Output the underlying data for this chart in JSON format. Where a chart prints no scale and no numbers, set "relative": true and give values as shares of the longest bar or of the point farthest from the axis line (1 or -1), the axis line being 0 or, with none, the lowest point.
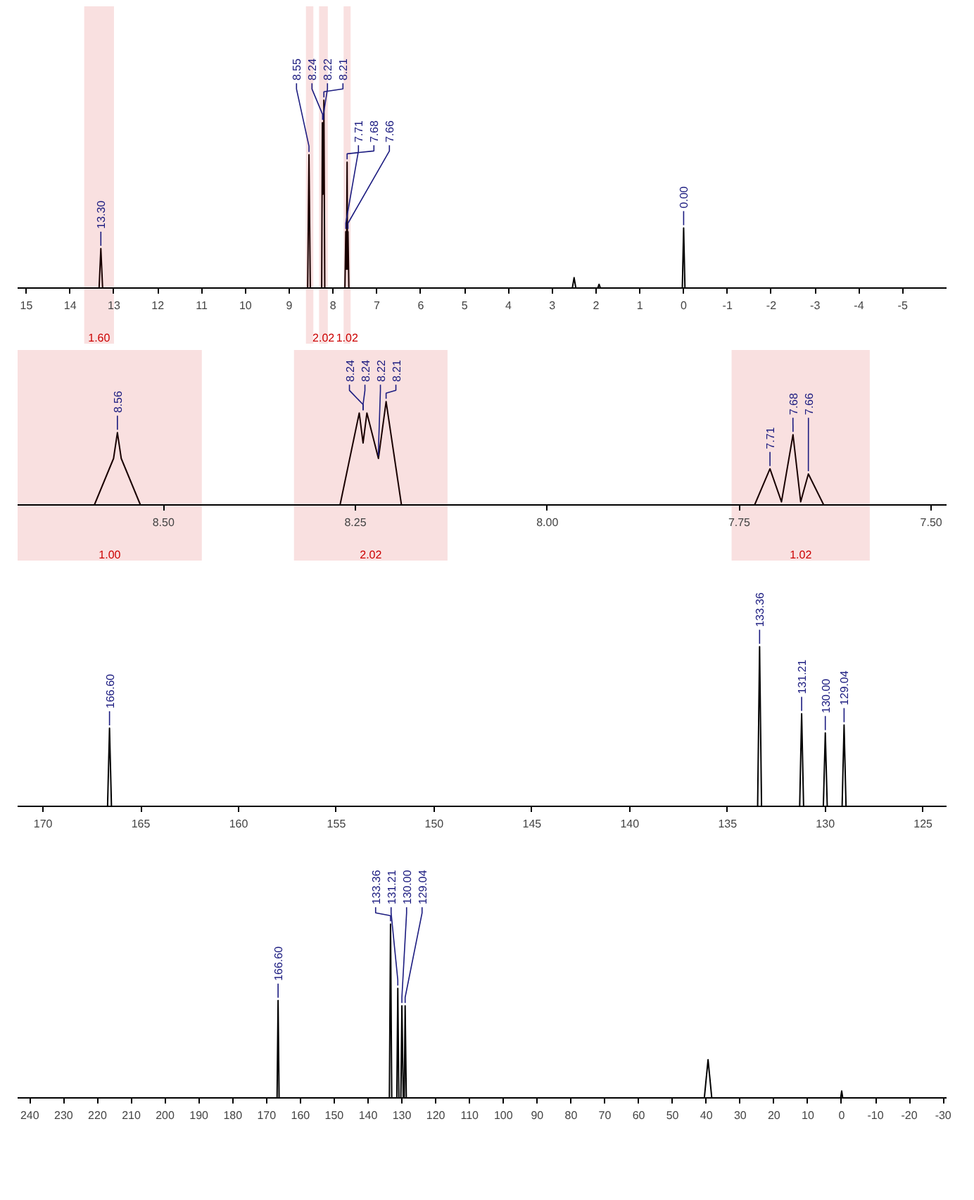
{
  "chart_data": [
    {
      "type": "line",
      "relative": true,
      "xlim": [
        15.2,
        -6.0
      ],
      "xticks": [
        15,
        14,
        13,
        12,
        11,
        10,
        9,
        8,
        7,
        6,
        5,
        4,
        3,
        2,
        1,
        0,
        -1,
        -2,
        -3,
        -4,
        -5
      ],
      "grid": false,
      "series": [
        {
          "color": "#000000",
          "x": [
            15.2,
            13.34,
            13.3,
            13.26,
            8.58,
            8.55,
            8.52,
            8.26,
            8.245,
            8.23,
            8.22,
            8.215,
            8.21,
            8.19,
            7.73,
            7.71,
            7.695,
            7.68,
            7.67,
            7.66,
            7.64,
            2.54,
            2.5,
            2.46,
            1.96,
            1.93,
            1.9,
            0.03,
            0.0,
            -0.03,
            -6.0
          ],
          "values": [
            0,
            0,
            0.21,
            0,
            0,
            0.71,
            0,
            0,
            0.88,
            0.5,
            0.88,
            0.6,
            1.0,
            0,
            0,
            0.3,
            0.1,
            0.67,
            0.1,
            0.3,
            0,
            0,
            0.055,
            0,
            0,
            0.02,
            0,
            0,
            0.32,
            0,
            0
          ]
        }
      ],
      "annotations": [
        {
          "text": "13.30",
          "x": 13.3,
          "y": 0.21
        },
        {
          "text": "8.55",
          "x": 8.55,
          "y": 0.71
        },
        {
          "text": "8.24",
          "x": 8.24,
          "y": 0.88
        },
        {
          "text": "8.22",
          "x": 8.22,
          "y": 0.88
        },
        {
          "text": "8.21",
          "x": 8.21,
          "y": 1.0
        },
        {
          "text": "7.71",
          "x": 7.71,
          "y": 0.3
        },
        {
          "text": "7.68",
          "x": 7.68,
          "y": 0.67
        },
        {
          "text": "7.66",
          "x": 7.66,
          "y": 0.3
        },
        {
          "text": "0.00",
          "x": 0.0,
          "y": 0.32
        }
      ],
      "bands": [
        {
          "axis": "x",
          "from": 13.68,
          "to": 13.0,
          "label": "1.60",
          "color": "#cc0000"
        },
        {
          "axis": "x",
          "from": 8.62,
          "to": 8.45,
          "label": null,
          "color": "#cc0000"
        },
        {
          "axis": "x",
          "from": 8.32,
          "to": 8.12,
          "label": "2.02",
          "color": "#cc0000"
        },
        {
          "axis": "x",
          "from": 7.76,
          "to": 7.6,
          "label": "1.02",
          "color": "#cc0000"
        }
      ]
    },
    {
      "type": "line",
      "relative": true,
      "xlim": [
        8.69,
        7.48
      ],
      "xticks": [
        {
          "value": 8.5,
          "label": "8.50"
        },
        {
          "value": 8.25,
          "label": "8.25"
        },
        {
          "value": 8.0,
          "label": "8.00"
        },
        {
          "value": 7.75,
          "label": "7.75"
        },
        {
          "value": 7.5,
          "label": "7.50"
        }
      ],
      "grid": false,
      "series": [
        {
          "color": "#000000",
          "x": [
            8.69,
            8.59,
            8.565,
            8.56,
            8.555,
            8.53,
            8.27,
            8.245,
            8.24,
            8.235,
            8.22,
            8.21,
            8.19,
            7.73,
            7.71,
            7.695,
            7.68,
            7.67,
            7.66,
            7.64,
            7.48
          ],
          "values": [
            0,
            0,
            0.45,
            0.7,
            0.45,
            0,
            0,
            0.89,
            0.6,
            0.89,
            0.45,
            1.0,
            0,
            0,
            0.35,
            0.03,
            0.68,
            0.03,
            0.3,
            0,
            0
          ]
        }
      ],
      "annotations": [
        {
          "text": "8.56",
          "x": 8.56,
          "y": 0.7
        },
        {
          "text": "8.24",
          "x": 8.24,
          "y": 0.89
        },
        {
          "text": "8.24",
          "x": 8.24,
          "y": 0.89
        },
        {
          "text": "8.22",
          "x": 8.22,
          "y": 0.45
        },
        {
          "text": "8.21",
          "x": 8.21,
          "y": 1.0
        },
        {
          "text": "7.71",
          "x": 7.71,
          "y": 0.35
        },
        {
          "text": "7.68",
          "x": 7.68,
          "y": 0.68
        },
        {
          "text": "7.66",
          "x": 7.66,
          "y": 0.3
        }
      ],
      "bands": [
        {
          "axis": "x",
          "from": 8.69,
          "to": 8.45,
          "label": "1.00",
          "color": "#cc0000"
        },
        {
          "axis": "x",
          "from": 8.33,
          "to": 8.13,
          "label": "2.02",
          "color": "#cc0000"
        },
        {
          "axis": "x",
          "from": 7.76,
          "to": 7.58,
          "label": "1.02",
          "color": "#cc0000"
        }
      ]
    },
    {
      "type": "line",
      "relative": true,
      "xlim": [
        171.3,
        123.8
      ],
      "xticks": [
        170,
        165,
        160,
        155,
        150,
        145,
        140,
        135,
        130,
        125
      ],
      "grid": false,
      "series": [
        {
          "color": "#000000",
          "x": [
            171.3,
            166.7,
            166.6,
            166.5,
            133.46,
            133.36,
            133.26,
            131.31,
            131.21,
            131.11,
            130.1,
            130.0,
            129.9,
            129.14,
            129.04,
            128.94,
            123.8
          ],
          "values": [
            0,
            0,
            0.49,
            0,
            0,
            1.0,
            0,
            0,
            0.58,
            0,
            0,
            0.46,
            0,
            0,
            0.51,
            0,
            0
          ]
        }
      ],
      "annotations": [
        {
          "text": "166.60",
          "x": 166.6,
          "y": 0.49
        },
        {
          "text": "133.36",
          "x": 133.36,
          "y": 1.0
        },
        {
          "text": "131.21",
          "x": 131.21,
          "y": 0.58
        },
        {
          "text": "130.00",
          "x": 130.0,
          "y": 0.46
        },
        {
          "text": "129.04",
          "x": 129.04,
          "y": 0.51
        }
      ]
    },
    {
      "type": "line",
      "relative": true,
      "xlim": [
        243.6,
        -31.0
      ],
      "xticks": [
        240,
        230,
        220,
        210,
        200,
        190,
        180,
        170,
        160,
        150,
        140,
        130,
        120,
        110,
        100,
        90,
        80,
        70,
        60,
        50,
        40,
        30,
        20,
        10,
        0,
        -10,
        -20,
        -30
      ],
      "grid": false,
      "series": [
        {
          "color": "#000000",
          "x": [
            243.6,
            166.9,
            166.6,
            166.3,
            133.7,
            133.36,
            133.0,
            131.5,
            131.21,
            130.9,
            130.3,
            130.0,
            129.6,
            129.3,
            129.04,
            128.7,
            40.6,
            40.0,
            39.5,
            39.0,
            38.4,
            0.3,
            0.0,
            -0.3,
            -31.0
          ],
          "values": [
            0,
            0,
            0.56,
            0,
            0,
            1.0,
            0,
            0,
            0.63,
            0,
            0,
            0.53,
            0,
            0,
            0.53,
            0,
            0,
            0.12,
            0.22,
            0.12,
            0,
            0,
            0.04,
            0,
            0
          ]
        }
      ],
      "annotations": [
        {
          "text": "166.60",
          "x": 166.6,
          "y": 0.56
        },
        {
          "text": "133.36",
          "x": 133.36,
          "y": 1.0
        },
        {
          "text": "131.21",
          "x": 131.21,
          "y": 0.63
        },
        {
          "text": "130.00",
          "x": 130.0,
          "y": 0.53
        },
        {
          "text": "129.04",
          "x": 129.04,
          "y": 0.53
        }
      ]
    }
  ]
}
